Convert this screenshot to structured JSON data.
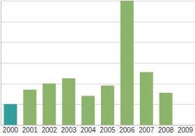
{
  "chart_data": {
    "type": "bar",
    "categories": [
      "2000",
      "2001",
      "2002",
      "2003",
      "2004",
      "2005",
      "2006",
      "2007",
      "2008",
      "2009"
    ],
    "values": [
      1.0,
      1.7,
      2.0,
      2.25,
      1.4,
      1.9,
      6.0,
      2.55,
      1.55,
      null
    ],
    "colors": [
      "#339c9c",
      "#8cb46b",
      "#8cb46b",
      "#8cb46b",
      "#8cb46b",
      "#8cb46b",
      "#8cb46b",
      "#8cb46b",
      "#8cb46b",
      "#8cb46b"
    ],
    "ylim": [
      0,
      6
    ],
    "yticks": [
      0,
      1,
      2,
      3,
      4,
      5,
      6
    ],
    "grid": true,
    "tick_labels": "x"
  }
}
